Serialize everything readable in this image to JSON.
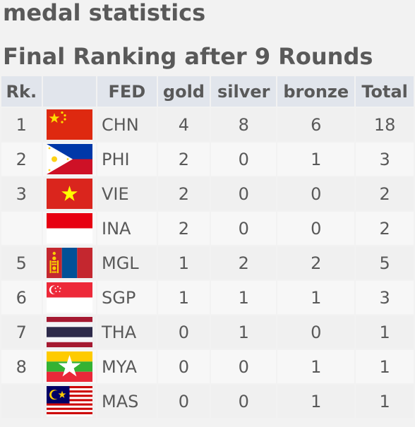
{
  "page": {
    "title": "medal statistics",
    "subtitle": "Final Ranking after 9 Rounds"
  },
  "table": {
    "headers": {
      "rank": "Rk.",
      "flag": "",
      "fed": "FED",
      "gold": "gold",
      "silver": "silver",
      "bronze": "bronze",
      "total": "Total"
    },
    "rows": [
      {
        "rank": "1",
        "flag": "china-flag-icon",
        "fed": "CHN",
        "gold": "4",
        "silver": "8",
        "bronze": "6",
        "total": "18"
      },
      {
        "rank": "2",
        "flag": "philippines-flag-icon",
        "fed": "PHI",
        "gold": "2",
        "silver": "0",
        "bronze": "1",
        "total": "3"
      },
      {
        "rank": "3",
        "flag": "vietnam-flag-icon",
        "fed": "VIE",
        "gold": "2",
        "silver": "0",
        "bronze": "0",
        "total": "2"
      },
      {
        "rank": "",
        "flag": "indonesia-flag-icon",
        "fed": "INA",
        "gold": "2",
        "silver": "0",
        "bronze": "0",
        "total": "2"
      },
      {
        "rank": "5",
        "flag": "mongolia-flag-icon",
        "fed": "MGL",
        "gold": "1",
        "silver": "2",
        "bronze": "2",
        "total": "5"
      },
      {
        "rank": "6",
        "flag": "singapore-flag-icon",
        "fed": "SGP",
        "gold": "1",
        "silver": "1",
        "bronze": "1",
        "total": "3"
      },
      {
        "rank": "7",
        "flag": "thailand-flag-icon",
        "fed": "THA",
        "gold": "0",
        "silver": "1",
        "bronze": "0",
        "total": "1"
      },
      {
        "rank": "8",
        "flag": "myanmar-flag-icon",
        "fed": "MYA",
        "gold": "0",
        "silver": "0",
        "bronze": "1",
        "total": "1"
      },
      {
        "rank": "",
        "flag": "malaysia-flag-icon",
        "fed": "MAS",
        "gold": "0",
        "silver": "0",
        "bronze": "1",
        "total": "1"
      }
    ]
  },
  "colors": {
    "text": "#595959",
    "header_bg": "#e1e5ec",
    "row_odd": "#f0f0f0",
    "row_even": "#f7f7f7"
  }
}
